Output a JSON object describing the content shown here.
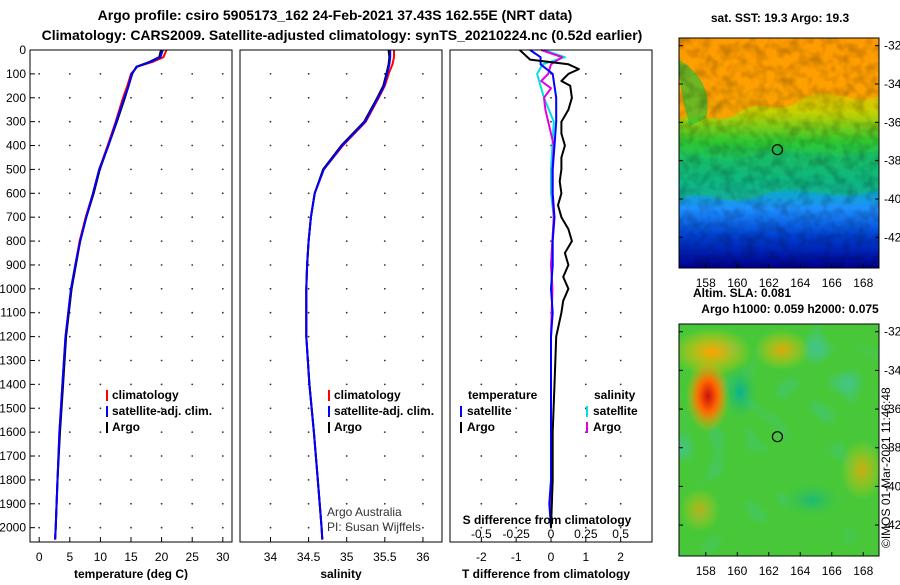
{
  "header": {
    "line1": "Argo profile: csiro 5905173_162 24-Feb-2021 37.43S 162.55E (NRT data)",
    "line2": "Climatology: CARS2009. Satellite-adjusted climatology: synTS_20210224.nc (0.52d earlier)"
  },
  "credit": {
    "line1": "Argo Australia",
    "line2": "PI: Susan Wijffels",
    "imos": "©IMOS 01-Mar-2021 11:46:48"
  },
  "colors": {
    "climatology": "#ff0000",
    "satellite": "#0000ff",
    "argo": "#000000",
    "t_sat": "#00e0e0",
    "s_argo": "#e000e0"
  },
  "chart_data": [
    {
      "type": "line",
      "id": "temperature",
      "xlabel": "temperature (deg C)",
      "xlim": [
        -1.5,
        31.5
      ],
      "xticks": [
        0,
        5,
        10,
        15,
        20,
        25,
        30
      ],
      "ylim": [
        2060,
        0
      ],
      "yticks": [
        0,
        100,
        200,
        300,
        400,
        500,
        600,
        700,
        800,
        900,
        1000,
        1100,
        1200,
        1300,
        1400,
        1500,
        1600,
        1700,
        1800,
        1900,
        2000
      ],
      "legend": [
        "climatology",
        "satellite-adj. clim.",
        "Argo"
      ],
      "series": [
        {
          "name": "climatology",
          "depth": [
            0,
            30,
            50,
            70,
            100,
            150,
            200,
            300,
            400,
            500,
            600,
            700,
            800,
            900,
            1000,
            1200,
            1400,
            1600,
            1800,
            2000,
            2050
          ],
          "values": [
            20.8,
            20.3,
            18.5,
            16.0,
            15.0,
            14.4,
            13.7,
            12.5,
            11.2,
            9.8,
            8.8,
            7.6,
            6.6,
            5.9,
            5.2,
            4.3,
            3.8,
            3.3,
            3.0,
            2.7,
            2.6
          ]
        },
        {
          "name": "satellite-adj. clim.",
          "depth": [
            0,
            30,
            50,
            70,
            100,
            150,
            200,
            300,
            400,
            500,
            600,
            700,
            800,
            900,
            1000,
            1200,
            1400,
            1600,
            1800,
            2000,
            2050
          ],
          "values": [
            20.2,
            19.8,
            18.2,
            16.0,
            15.1,
            14.6,
            13.9,
            12.6,
            11.3,
            9.8,
            8.8,
            7.7,
            6.7,
            5.9,
            5.2,
            4.3,
            3.8,
            3.3,
            3.0,
            2.7,
            2.6
          ]
        },
        {
          "name": "Argo",
          "depth": [
            0,
            30,
            50,
            70,
            100,
            150,
            200,
            300,
            400,
            500,
            600,
            700,
            800,
            900,
            1000,
            1200,
            1400,
            1600,
            1800,
            2000,
            2050
          ],
          "values": [
            19.9,
            19.6,
            18.0,
            15.9,
            15.2,
            14.6,
            14.0,
            12.7,
            11.3,
            9.9,
            8.9,
            7.7,
            6.7,
            6.0,
            5.3,
            4.4,
            3.9,
            3.4,
            3.0,
            2.7,
            2.6
          ]
        }
      ]
    },
    {
      "type": "line",
      "id": "salinity",
      "xlabel": "salinity",
      "xlim": [
        33.6,
        36.25
      ],
      "xticks": [
        34,
        34.5,
        35,
        35.5,
        36
      ],
      "ylim": [
        2060,
        0
      ],
      "legend": [
        "climatology",
        "satellite-adj. clim.",
        "Argo"
      ],
      "series": [
        {
          "name": "climatology",
          "depth": [
            0,
            30,
            60,
            100,
            150,
            200,
            300,
            400,
            500,
            600,
            700,
            800,
            900,
            1000,
            1100,
            1200,
            1400,
            1600,
            1800,
            2000,
            2050
          ],
          "values": [
            35.62,
            35.62,
            35.6,
            35.55,
            35.5,
            35.42,
            35.25,
            34.95,
            34.7,
            34.58,
            34.53,
            34.5,
            34.48,
            34.47,
            34.47,
            34.47,
            34.51,
            34.57,
            34.62,
            34.67,
            34.68
          ]
        },
        {
          "name": "satellite-adj. clim.",
          "depth": [
            0,
            30,
            60,
            100,
            150,
            200,
            300,
            400,
            500,
            600,
            700,
            800,
            900,
            1000,
            1100,
            1200,
            1400,
            1600,
            1800,
            2000,
            2050
          ],
          "values": [
            35.57,
            35.57,
            35.56,
            35.53,
            35.49,
            35.41,
            35.24,
            34.94,
            34.7,
            34.58,
            34.53,
            34.5,
            34.48,
            34.47,
            34.47,
            34.47,
            34.51,
            34.57,
            34.62,
            34.67,
            34.68
          ]
        },
        {
          "name": "Argo",
          "depth": [
            0,
            30,
            60,
            100,
            150,
            200,
            300,
            400,
            500,
            600,
            700,
            800,
            900,
            1000,
            1100,
            1200,
            1400,
            1600,
            1800,
            2000,
            2050
          ],
          "values": [
            35.55,
            35.56,
            35.55,
            35.52,
            35.48,
            35.4,
            35.23,
            34.93,
            34.69,
            34.58,
            34.53,
            34.5,
            34.48,
            34.47,
            34.47,
            34.47,
            34.51,
            34.57,
            34.62,
            34.67,
            34.68
          ]
        }
      ]
    },
    {
      "type": "line",
      "id": "differences",
      "xlabel": "T difference from climatology",
      "xlabel2": "S difference from climatology",
      "xlim": [
        -2.9,
        2.9
      ],
      "xticks": [
        -2,
        -1,
        0,
        1,
        2
      ],
      "s_ticks": [
        -0.5,
        -0.25,
        0,
        0.25,
        0.5
      ],
      "s_scale": 4,
      "ylim": [
        2060,
        0
      ],
      "legend_t_head": "temperature",
      "legend_s_head": "salinity",
      "legend": [
        "satellite",
        "Argo"
      ],
      "series": [
        {
          "name": "T satellite",
          "depth": [
            0,
            30,
            60,
            100,
            200,
            300,
            400,
            500,
            600,
            700,
            800,
            900,
            1000,
            1100,
            1200,
            1400,
            1600,
            1800,
            1900,
            2000
          ],
          "values": [
            -0.6,
            -0.3,
            -0.3,
            0.05,
            0.15,
            0.15,
            0.1,
            0.05,
            0.05,
            0.1,
            0.05,
            0.05,
            0.0,
            0.05,
            0.0,
            0.0,
            0.0,
            0.0,
            -0.05,
            0.0
          ]
        },
        {
          "name": "T Argo",
          "depth": [
            0,
            40,
            60,
            80,
            100,
            130,
            150,
            200,
            250,
            300,
            350,
            400,
            450,
            500,
            550,
            600,
            650,
            700,
            750,
            800,
            850,
            900,
            950,
            1000,
            1050,
            1100,
            1200,
            1400,
            1600,
            1800,
            2000
          ],
          "values": [
            -0.9,
            -0.6,
            0.5,
            0.8,
            0.5,
            0.3,
            0.55,
            0.6,
            0.5,
            0.3,
            0.3,
            0.4,
            0.3,
            0.3,
            0.25,
            0.3,
            0.2,
            0.3,
            0.5,
            0.6,
            0.4,
            0.5,
            0.35,
            0.5,
            0.35,
            0.3,
            0.15,
            0.1,
            0.05,
            0.05,
            0.0
          ]
        },
        {
          "name": "S satellite",
          "depth": [
            0,
            30,
            60,
            100,
            200,
            300,
            400,
            500,
            600,
            700,
            800,
            900,
            1000,
            1200,
            1400,
            1600,
            1800,
            2000
          ],
          "values": [
            -0.05,
            0.1,
            -0.06,
            -0.1,
            -0.05,
            0.02,
            0.01,
            0.0,
            0.0,
            0.02,
            0.01,
            0.0,
            0.01,
            0.0,
            0.0,
            0.0,
            0.0,
            0.0
          ]
        },
        {
          "name": "S Argo",
          "depth": [
            0,
            30,
            60,
            100,
            130,
            160,
            200,
            250,
            300,
            400,
            500,
            600,
            700,
            800,
            900,
            1000,
            1200,
            1400,
            1600,
            1800,
            2000
          ],
          "values": [
            -0.07,
            0.08,
            0.0,
            -0.02,
            -0.07,
            0.0,
            -0.05,
            -0.04,
            -0.02,
            0.02,
            0.01,
            0.01,
            0.02,
            0.01,
            0.0,
            0.01,
            0.0,
            0.0,
            0.0,
            0.0,
            0.0
          ]
        }
      ]
    },
    {
      "type": "heatmap",
      "id": "sst-map",
      "title": "sat. SST: 19.3 Argo: 19.3",
      "xlabel": "Altim. SLA: 0.081",
      "xticks": [
        158,
        160,
        162,
        164,
        166,
        168
      ],
      "yticks": [
        -32,
        -34,
        -36,
        -38,
        -40,
        -42
      ],
      "profile_lon": 162.55,
      "profile_lat": -37.43
    },
    {
      "type": "heatmap",
      "id": "sla-map",
      "title": "Argo h1000: 0.059 h2000: 0.075",
      "xticks": [
        158,
        160,
        162,
        164,
        166,
        168
      ],
      "yticks": [
        -32,
        -34,
        -36,
        -38,
        -40,
        -42
      ],
      "profile_lon": 162.55,
      "profile_lat": -37.43
    }
  ]
}
